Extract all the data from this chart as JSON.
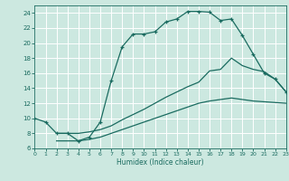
{
  "xlabel": "Humidex (Indice chaleur)",
  "xlim": [
    0,
    23
  ],
  "ylim": [
    6,
    25
  ],
  "xticks": [
    0,
    1,
    2,
    3,
    4,
    5,
    6,
    7,
    8,
    9,
    10,
    11,
    12,
    13,
    14,
    15,
    16,
    17,
    18,
    19,
    20,
    21,
    22,
    23
  ],
  "yticks": [
    6,
    8,
    10,
    12,
    14,
    16,
    18,
    20,
    22,
    24
  ],
  "bg_color": "#cce8e0",
  "grid_color": "#b0d8d0",
  "line_color": "#1a6b60",
  "line1_x": [
    0,
    1,
    2,
    3,
    4,
    5,
    6,
    7,
    8,
    9,
    10,
    11,
    12,
    13,
    14,
    15,
    16,
    17,
    18,
    19,
    20,
    21,
    22,
    23
  ],
  "line1_y": [
    10,
    9.5,
    8.0,
    8.0,
    7.0,
    7.5,
    9.5,
    15.0,
    19.5,
    21.2,
    21.2,
    21.5,
    22.8,
    23.2,
    24.2,
    24.2,
    24.1,
    23.0,
    23.2,
    21.0,
    18.5,
    16.0,
    15.2,
    13.5
  ],
  "line2_x": [
    2,
    3,
    4,
    5,
    6,
    7,
    8,
    9,
    10,
    11,
    12,
    13,
    14,
    15,
    16,
    17,
    18,
    19,
    20,
    21,
    22,
    23
  ],
  "line2_y": [
    8.0,
    8.0,
    8.0,
    8.2,
    8.5,
    9.0,
    9.8,
    10.5,
    11.2,
    12.0,
    12.8,
    13.5,
    14.2,
    14.8,
    16.3,
    16.5,
    18.0,
    17.0,
    16.5,
    16.2,
    15.2,
    13.5
  ],
  "line3_x": [
    2,
    3,
    4,
    5,
    6,
    7,
    8,
    9,
    10,
    11,
    12,
    13,
    14,
    15,
    16,
    17,
    18,
    19,
    20,
    21,
    22,
    23
  ],
  "line3_y": [
    7.0,
    7.0,
    7.0,
    7.2,
    7.5,
    8.0,
    8.5,
    9.0,
    9.5,
    10.0,
    10.5,
    11.0,
    11.5,
    12.0,
    12.3,
    12.5,
    12.7,
    12.5,
    12.3,
    12.2,
    12.1,
    12.0
  ]
}
